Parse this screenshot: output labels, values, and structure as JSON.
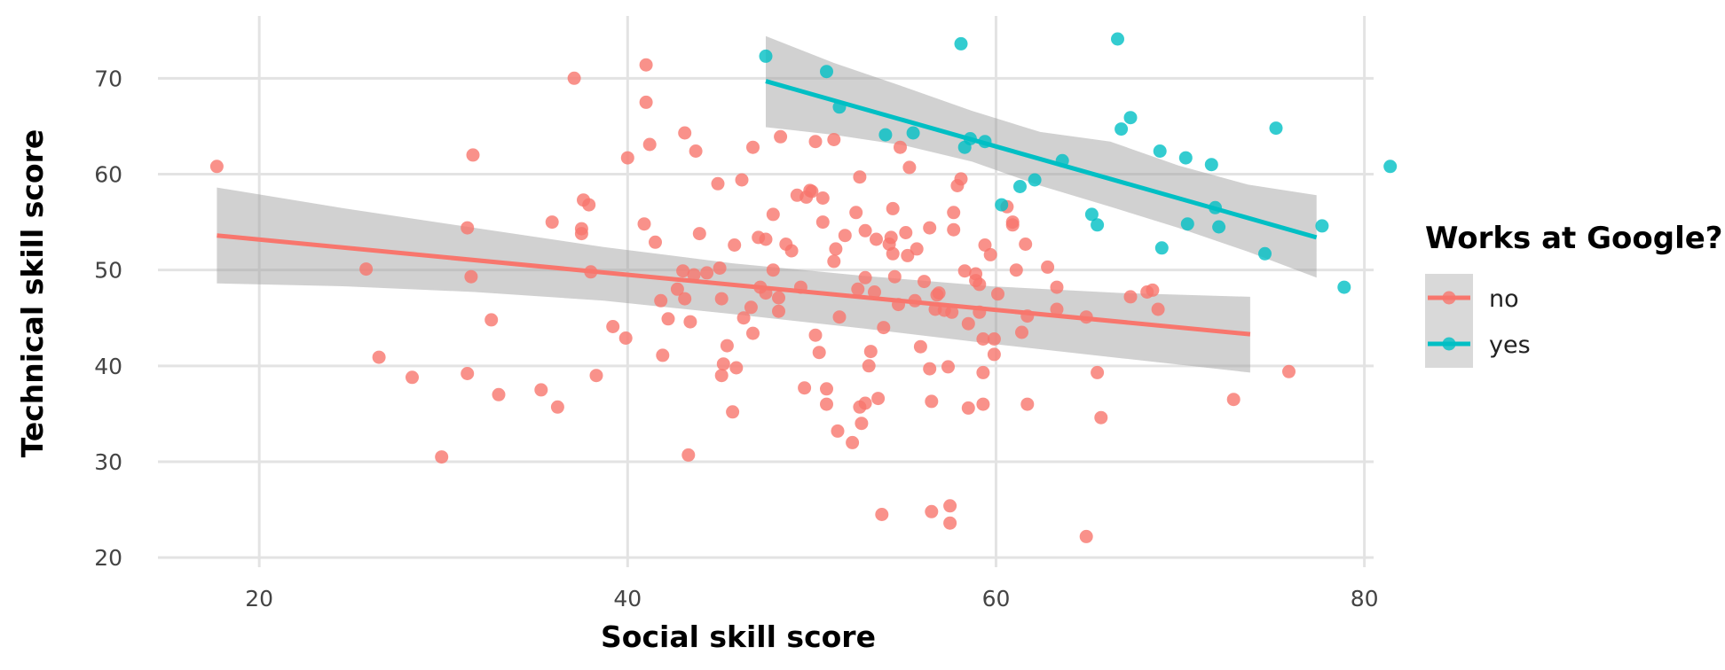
{
  "chart_data": {
    "type": "scatter",
    "title": "",
    "xlabel": "Social skill score",
    "ylabel": "Technical skill score",
    "xlim": [
      14.5,
      80.5
    ],
    "ylim": [
      19,
      76.5
    ],
    "x_ticks": [
      20,
      40,
      60,
      80
    ],
    "y_ticks": [
      20,
      30,
      40,
      50,
      60,
      70
    ],
    "x_tick_labels": [
      "20",
      "40",
      "60",
      "80"
    ],
    "y_tick_labels": [
      "20",
      "30",
      "40",
      "50",
      "60",
      "70"
    ],
    "grid": true,
    "legend": {
      "title": "Works at Google?",
      "position": "right"
    },
    "series": [
      {
        "name": "no",
        "color": "#F8766D",
        "points": [
          [
            17.7,
            60.8
          ],
          [
            25.8,
            50.1
          ],
          [
            26.5,
            40.9
          ],
          [
            28.3,
            38.8
          ],
          [
            29.9,
            30.5
          ],
          [
            31.3,
            39.2
          ],
          [
            31.3,
            54.4
          ],
          [
            31.5,
            49.3
          ],
          [
            31.6,
            62.0
          ],
          [
            32.6,
            44.8
          ],
          [
            33.0,
            37.0
          ],
          [
            35.3,
            37.5
          ],
          [
            35.9,
            55.0
          ],
          [
            36.2,
            35.7
          ],
          [
            37.1,
            70.0
          ],
          [
            37.5,
            53.8
          ],
          [
            37.5,
            54.3
          ],
          [
            37.6,
            57.3
          ],
          [
            37.9,
            56.8
          ],
          [
            38.0,
            49.8
          ],
          [
            38.3,
            39.0
          ],
          [
            39.2,
            44.1
          ],
          [
            39.9,
            42.9
          ],
          [
            40.0,
            61.7
          ],
          [
            40.9,
            54.8
          ],
          [
            41.0,
            71.4
          ],
          [
            41.0,
            67.5
          ],
          [
            41.2,
            63.1
          ],
          [
            41.5,
            52.9
          ],
          [
            41.8,
            46.8
          ],
          [
            41.9,
            41.1
          ],
          [
            42.2,
            44.9
          ],
          [
            42.7,
            48.0
          ],
          [
            43.0,
            49.9
          ],
          [
            43.1,
            47.0
          ],
          [
            43.1,
            64.3
          ],
          [
            43.3,
            30.7
          ],
          [
            43.4,
            44.6
          ],
          [
            43.6,
            49.5
          ],
          [
            43.7,
            62.4
          ],
          [
            43.9,
            53.8
          ],
          [
            44.3,
            49.7
          ],
          [
            44.9,
            59.0
          ],
          [
            45.0,
            50.2
          ],
          [
            45.1,
            47.0
          ],
          [
            45.1,
            39.0
          ],
          [
            45.2,
            40.2
          ],
          [
            45.4,
            42.1
          ],
          [
            45.7,
            35.2
          ],
          [
            45.8,
            52.6
          ],
          [
            45.9,
            39.8
          ],
          [
            46.2,
            59.4
          ],
          [
            46.3,
            45.0
          ],
          [
            46.7,
            46.1
          ],
          [
            46.8,
            62.8
          ],
          [
            46.8,
            43.4
          ],
          [
            47.1,
            53.4
          ],
          [
            47.2,
            48.2
          ],
          [
            47.5,
            47.6
          ],
          [
            47.5,
            53.2
          ],
          [
            47.9,
            50.0
          ],
          [
            47.9,
            55.8
          ],
          [
            48.2,
            45.7
          ],
          [
            48.2,
            47.1
          ],
          [
            48.3,
            63.9
          ],
          [
            48.6,
            52.7
          ],
          [
            48.9,
            52.0
          ],
          [
            49.2,
            57.8
          ],
          [
            49.4,
            48.2
          ],
          [
            49.6,
            37.7
          ],
          [
            49.7,
            57.6
          ],
          [
            49.9,
            58.3
          ],
          [
            50.0,
            58.2
          ],
          [
            50.2,
            63.4
          ],
          [
            50.2,
            43.2
          ],
          [
            50.4,
            41.4
          ],
          [
            50.6,
            57.5
          ],
          [
            50.6,
            55.0
          ],
          [
            50.8,
            37.6
          ],
          [
            50.8,
            36.0
          ],
          [
            51.2,
            63.6
          ],
          [
            51.2,
            50.9
          ],
          [
            51.3,
            52.2
          ],
          [
            51.4,
            33.2
          ],
          [
            51.5,
            45.1
          ],
          [
            51.8,
            53.6
          ],
          [
            52.2,
            32.0
          ],
          [
            52.4,
            56.0
          ],
          [
            52.5,
            48.0
          ],
          [
            52.6,
            59.7
          ],
          [
            52.6,
            35.7
          ],
          [
            52.7,
            34.0
          ],
          [
            52.9,
            49.2
          ],
          [
            52.9,
            54.1
          ],
          [
            52.9,
            36.1
          ],
          [
            53.1,
            40.0
          ],
          [
            53.2,
            41.5
          ],
          [
            53.4,
            47.7
          ],
          [
            53.5,
            53.2
          ],
          [
            53.6,
            36.6
          ],
          [
            53.8,
            24.5
          ],
          [
            53.9,
            44.0
          ],
          [
            54.2,
            52.7
          ],
          [
            54.3,
            53.4
          ],
          [
            54.4,
            51.7
          ],
          [
            54.4,
            56.4
          ],
          [
            54.5,
            49.3
          ],
          [
            54.7,
            46.4
          ],
          [
            54.8,
            62.8
          ],
          [
            55.1,
            53.9
          ],
          [
            55.2,
            51.5
          ],
          [
            55.3,
            60.7
          ],
          [
            55.6,
            46.8
          ],
          [
            55.7,
            52.2
          ],
          [
            55.9,
            42.0
          ],
          [
            56.1,
            48.8
          ],
          [
            56.4,
            39.7
          ],
          [
            56.4,
            54.4
          ],
          [
            56.5,
            36.3
          ],
          [
            56.5,
            24.8
          ],
          [
            56.7,
            45.9
          ],
          [
            56.8,
            47.4
          ],
          [
            56.9,
            47.6
          ],
          [
            57.2,
            45.8
          ],
          [
            57.4,
            39.9
          ],
          [
            57.5,
            25.4
          ],
          [
            57.5,
            23.6
          ],
          [
            57.6,
            45.6
          ],
          [
            57.7,
            56.0
          ],
          [
            57.7,
            54.2
          ],
          [
            57.9,
            58.8
          ],
          [
            58.1,
            59.5
          ],
          [
            58.3,
            49.9
          ],
          [
            58.5,
            44.4
          ],
          [
            58.5,
            35.6
          ],
          [
            58.9,
            49.6
          ],
          [
            58.9,
            48.9
          ],
          [
            59.1,
            48.5
          ],
          [
            59.1,
            45.6
          ],
          [
            59.3,
            42.8
          ],
          [
            59.3,
            39.3
          ],
          [
            59.3,
            36.0
          ],
          [
            59.4,
            52.6
          ],
          [
            59.7,
            51.6
          ],
          [
            59.9,
            42.8
          ],
          [
            59.9,
            41.2
          ],
          [
            60.1,
            47.5
          ],
          [
            60.6,
            56.6
          ],
          [
            60.9,
            54.7
          ],
          [
            60.9,
            55.0
          ],
          [
            61.1,
            50.0
          ],
          [
            61.4,
            43.5
          ],
          [
            61.6,
            52.7
          ],
          [
            61.7,
            45.2
          ],
          [
            61.7,
            36.0
          ],
          [
            62.8,
            50.3
          ],
          [
            63.3,
            48.2
          ],
          [
            63.3,
            45.9
          ],
          [
            64.9,
            45.1
          ],
          [
            64.9,
            22.2
          ],
          [
            65.5,
            39.3
          ],
          [
            65.7,
            34.6
          ],
          [
            67.3,
            47.2
          ],
          [
            68.2,
            47.7
          ],
          [
            68.5,
            47.9
          ],
          [
            68.8,
            45.9
          ],
          [
            72.9,
            36.5
          ],
          [
            75.9,
            39.4
          ]
        ]
      },
      {
        "name": "yes",
        "color": "#00BFC4",
        "points": [
          [
            47.5,
            72.3
          ],
          [
            50.8,
            70.7
          ],
          [
            51.5,
            67.0
          ],
          [
            54.0,
            64.1
          ],
          [
            55.5,
            64.3
          ],
          [
            58.1,
            73.6
          ],
          [
            58.3,
            62.8
          ],
          [
            58.6,
            63.7
          ],
          [
            59.4,
            63.4
          ],
          [
            60.3,
            56.8
          ],
          [
            61.3,
            58.7
          ],
          [
            62.1,
            59.4
          ],
          [
            63.6,
            61.4
          ],
          [
            65.2,
            55.8
          ],
          [
            65.5,
            54.7
          ],
          [
            66.6,
            74.1
          ],
          [
            66.8,
            64.7
          ],
          [
            67.3,
            65.9
          ],
          [
            68.9,
            62.4
          ],
          [
            69.0,
            52.3
          ],
          [
            70.3,
            61.7
          ],
          [
            70.4,
            54.8
          ],
          [
            71.7,
            61.0
          ],
          [
            71.9,
            56.5
          ],
          [
            72.1,
            54.5
          ],
          [
            74.6,
            51.7
          ],
          [
            75.2,
            64.8
          ],
          [
            77.7,
            54.6
          ],
          [
            78.9,
            48.2
          ],
          [
            81.4,
            60.8
          ]
        ]
      }
    ],
    "fits": [
      {
        "series": "no",
        "color": "#F8766D",
        "x": [
          17.7,
          73.8
        ],
        "y": [
          53.6,
          43.3
        ],
        "band_x": [
          17.7,
          24.7,
          31.7,
          38.7,
          45.7,
          52.8,
          59.8,
          66.8,
          73.8
        ],
        "band_lower": [
          48.6,
          48.3,
          47.7,
          46.8,
          45.4,
          43.9,
          42.3,
          40.8,
          39.3
        ],
        "band_upper": [
          58.6,
          56.4,
          54.4,
          52.4,
          50.7,
          49.4,
          48.3,
          47.6,
          47.2
        ]
      },
      {
        "series": "yes",
        "color": "#00BFC4",
        "x": [
          47.5,
          77.4
        ],
        "y": [
          69.7,
          53.4
        ],
        "band_x": [
          47.5,
          51.2,
          55.0,
          58.7,
          62.4,
          66.2,
          69.9,
          73.7,
          77.4
        ],
        "band_lower": [
          64.9,
          64.1,
          63.0,
          61.3,
          58.8,
          56.6,
          54.4,
          51.9,
          49.2
        ],
        "band_upper": [
          74.4,
          71.6,
          69.1,
          66.6,
          64.4,
          63.4,
          60.9,
          58.9,
          57.8
        ]
      }
    ]
  }
}
